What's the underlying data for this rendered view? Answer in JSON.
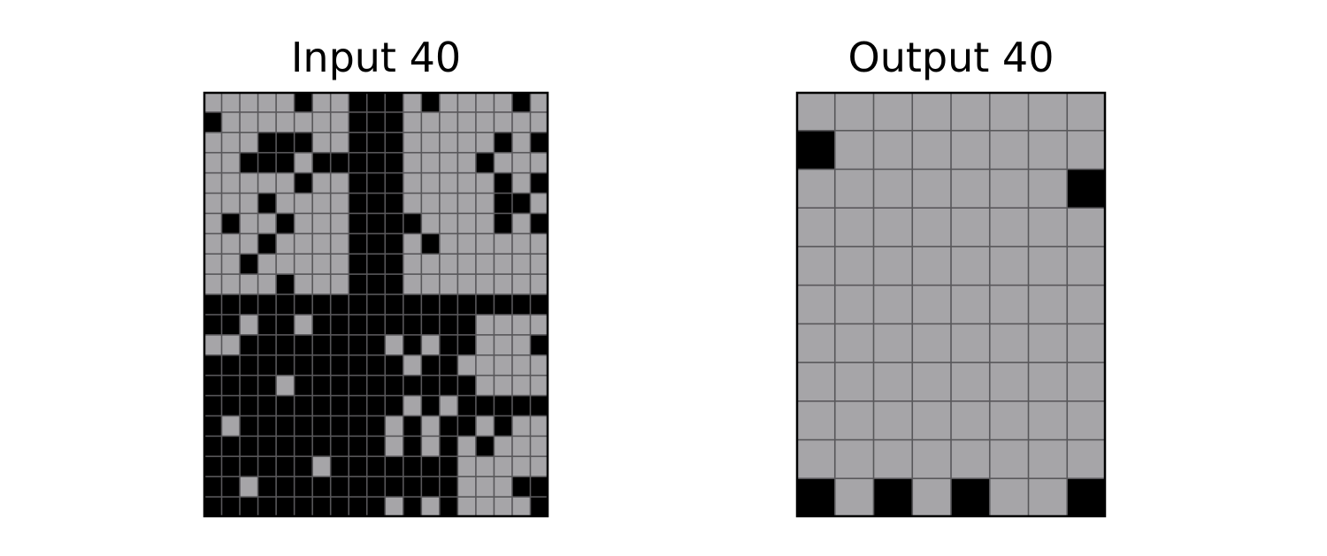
{
  "colors": {
    "black": "#000000",
    "gray": "#a6a5a8",
    "gridline": "#58575a",
    "border": "#000000"
  },
  "input": {
    "title": "Input 40",
    "rows": [
      "1111101100010111101",
      "0111111100011111111",
      "1110001100011111010",
      "1100010000011110111",
      "1111101100011111010",
      "1110111100011111001",
      "1011011100001111010",
      "1110111100010111111",
      "1101111100011111111",
      "1111011100011111111",
      "0000000000000000000",
      "0010010000000001111",
      "1100000000101001110",
      "0000000000010011111",
      "0000100000000001111",
      "0000000000010100000",
      "0100000000101001011",
      "0000000000101010111",
      "0000001000000011111",
      "0010000000000011100",
      "0000000000101011110"
    ]
  },
  "output": {
    "title": "Output 40",
    "rows": [
      "11111111",
      "01111111",
      "11111110",
      "11111111",
      "11111111",
      "11111111",
      "11111111",
      "11111111",
      "11111111",
      "11111111",
      "01010110"
    ]
  }
}
